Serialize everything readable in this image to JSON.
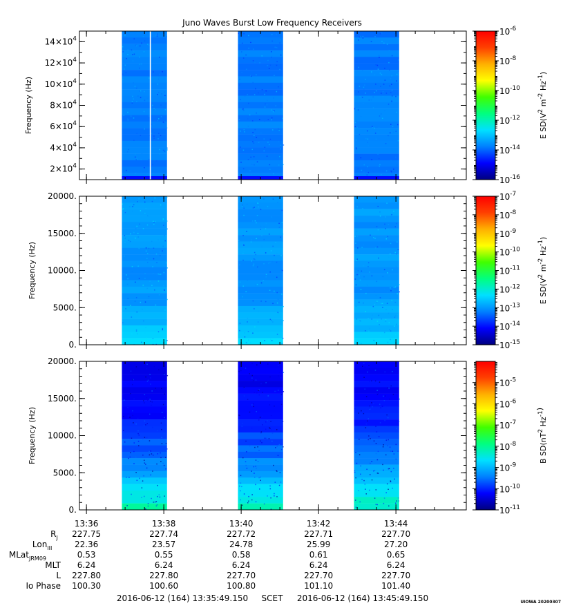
{
  "title": "Juno Waves Burst Low Frequency Receivers",
  "credit": "UIOWA 20200307",
  "colors": {
    "colorbar": [
      "#00007f",
      "#0000ff",
      "#0080ff",
      "#00e0ff",
      "#00ff80",
      "#40ff00",
      "#ffff00",
      "#ffb000",
      "#ff4000",
      "#ff0000"
    ],
    "panel_background": "#ffffff",
    "axes": "#000000"
  },
  "chart_data": [
    {
      "type": "heatmap",
      "name": "panel-1",
      "x_ticks": [
        "13:36",
        "13:38",
        "13:40",
        "13:42",
        "13:44"
      ],
      "x_range": [
        "13:35:49.150",
        "13:45:49.150"
      ],
      "ylabel": "Frequency (Hz)",
      "ylim": [
        10000,
        150000
      ],
      "y_ticks": [
        {
          "value": 20000,
          "base": "2×10",
          "exp": "4"
        },
        {
          "value": 40000,
          "base": "4×10",
          "exp": "4"
        },
        {
          "value": 60000,
          "base": "6×10",
          "exp": "4"
        },
        {
          "value": 80000,
          "base": "8×10",
          "exp": "4"
        },
        {
          "value": 100000,
          "base": "10×10",
          "exp": "4"
        },
        {
          "value": 120000,
          "base": "12×10",
          "exp": "4"
        },
        {
          "value": 140000,
          "base": "14×10",
          "exp": "4"
        }
      ],
      "bursts": [
        {
          "start": "13:36:55",
          "end": "13:38:05",
          "gap_at": "13:37:39"
        },
        {
          "start": "13:39:55",
          "end": "13:41:05"
        },
        {
          "start": "13:42:55",
          "end": "13:44:05"
        }
      ],
      "dominant_level_exp": -13.8,
      "colorbar": {
        "label_prefix": "E SD(V",
        "label_mid": " m",
        "label_suffix": " Hz",
        "label_end": ")",
        "sup1": "2",
        "sup2": "-2",
        "sup3": "-1",
        "scale": "log",
        "range_exp": [
          -16,
          -6
        ],
        "ticks": [
          "-6",
          "-8",
          "-10",
          "-12",
          "-14",
          "-16"
        ]
      }
    },
    {
      "type": "heatmap",
      "name": "panel-2",
      "ylabel": "Frequency (Hz)",
      "ylim": [
        0,
        20000
      ],
      "y_ticks": [
        "0.",
        "5000.",
        "10000.",
        "15000.",
        "20000."
      ],
      "bursts": [
        {
          "start": "13:36:55",
          "end": "13:38:05"
        },
        {
          "start": "13:39:55",
          "end": "13:41:05"
        },
        {
          "start": "13:42:55",
          "end": "13:44:05"
        }
      ],
      "dominant_level_exp": -13.0,
      "low_freq_level_exp": -12.0,
      "colorbar": {
        "label_prefix": "E SD(V",
        "label_mid": " m",
        "label_suffix": " Hz",
        "label_end": ")",
        "sup1": "2",
        "sup2": "-2",
        "sup3": "-1",
        "scale": "log",
        "range_exp": [
          -15,
          -7
        ],
        "ticks": [
          "-7",
          "-8",
          "-9",
          "-10",
          "-11",
          "-12",
          "-13",
          "-14",
          "-15"
        ]
      }
    },
    {
      "type": "heatmap",
      "name": "panel-3",
      "ylabel": "Frequency (Hz)",
      "ylim": [
        0,
        20000
      ],
      "y_ticks": [
        "0.",
        "5000.",
        "10000.",
        "15000.",
        "20000."
      ],
      "bursts": [
        {
          "start": "13:36:55",
          "end": "13:38:05"
        },
        {
          "start": "13:39:55",
          "end": "13:41:05"
        },
        {
          "start": "13:42:55",
          "end": "13:44:05"
        }
      ],
      "dominant_level_exp": -10.3,
      "low_freq_level_exp": -8.0,
      "colorbar": {
        "label_prefix": "B SD(nT",
        "label_mid": " Hz",
        "label_suffix": "",
        "label_end": ")",
        "sup1": "2",
        "sup2": "-1",
        "sup3": "",
        "scale": "log",
        "range_exp": [
          -11,
          -4
        ],
        "ticks": [
          "-5",
          "-6",
          "-7",
          "-8",
          "-9",
          "-10",
          "-11"
        ]
      }
    }
  ],
  "ephemeris": {
    "rows": [
      {
        "label": "R",
        "sub": "J",
        "values": [
          "227.75",
          "227.74",
          "227.72",
          "227.71",
          "227.70"
        ]
      },
      {
        "label": "Lon",
        "sub": "III",
        "values": [
          "22.36",
          "23.57",
          "24.78",
          "25.99",
          "27.20"
        ]
      },
      {
        "label": "MLat",
        "sub": "JRM09",
        "values": [
          "0.53",
          "0.55",
          "0.58",
          "0.61",
          "0.65"
        ]
      },
      {
        "label": "MLT",
        "sub": "",
        "values": [
          "6.24",
          "6.24",
          "6.24",
          "6.24",
          "6.24"
        ]
      },
      {
        "label": "L",
        "sub": "",
        "values": [
          "227.80",
          "227.80",
          "227.70",
          "227.70",
          "227.70"
        ]
      },
      {
        "label": "Io Phase",
        "sub": "",
        "values": [
          "100.30",
          "100.60",
          "100.80",
          "101.10",
          "101.40"
        ]
      }
    ]
  },
  "time_range": {
    "start": "2016-06-12 (164) 13:35:49.150",
    "frame": "SCET",
    "end": "2016-06-12 (164) 13:45:49.150"
  }
}
